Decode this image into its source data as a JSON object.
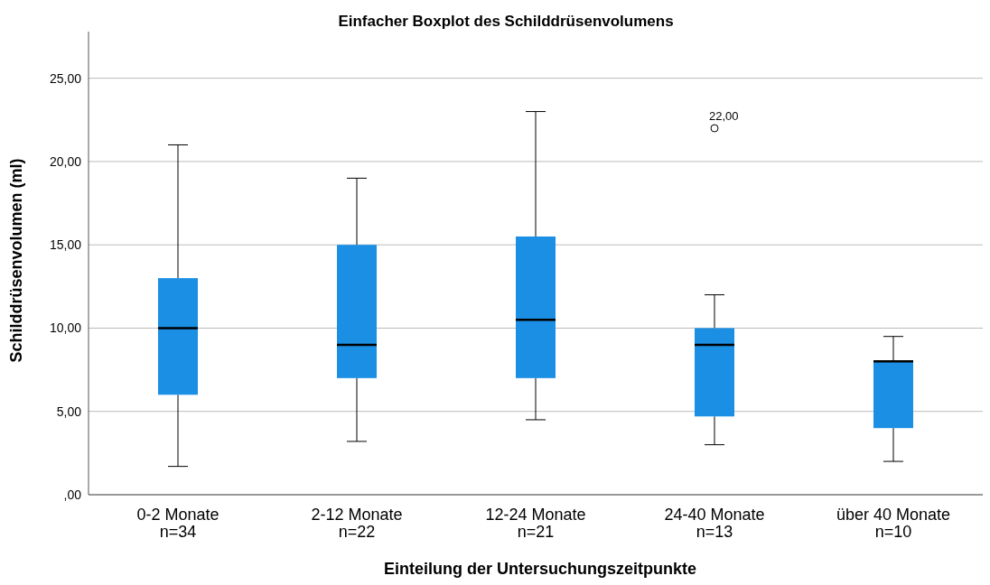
{
  "chart_data": {
    "type": "box",
    "title": "Einfacher Boxplot des Schilddrüsenvolumens",
    "xlabel": "Einteilung der Untersuchungszeitpunkte",
    "ylabel": "Schilddrüsenvolumen (ml)",
    "categories": [
      "0-2 Monate\nn=34",
      "2-12 Monate\nn=22",
      "12-24 Monate\nn=21",
      "24-40 Monate\nn=13",
      "über 40 Monate\nn=10"
    ],
    "boxes": [
      {
        "low": 1.7,
        "q1": 6,
        "median": 10,
        "q3": 13,
        "high": 21
      },
      {
        "low": 3.2,
        "q1": 7,
        "median": 9,
        "q3": 15,
        "high": 19
      },
      {
        "low": 4.5,
        "q1": 7,
        "median": 10.5,
        "q3": 15.5,
        "high": 23
      },
      {
        "low": 3,
        "q1": 4.7,
        "median": 9,
        "q3": 10,
        "high": 12,
        "outliers": [
          22
        ]
      },
      {
        "low": 2,
        "q1": 4,
        "median": 8,
        "q3": 8,
        "high": 9.5
      }
    ],
    "color": "#1a8fe3",
    "ylim": [
      0,
      27.8
    ],
    "yticks": [
      {
        "value": 0,
        "label": ",00"
      },
      {
        "value": 5,
        "label": "5,00"
      },
      {
        "value": 10,
        "label": "10,00"
      },
      {
        "value": 15,
        "label": "15,00"
      },
      {
        "value": 20,
        "label": "20,00"
      },
      {
        "value": 25,
        "label": "25,00"
      }
    ],
    "grid": "y",
    "marker": "circle",
    "annotations": [
      "22,00"
    ]
  }
}
